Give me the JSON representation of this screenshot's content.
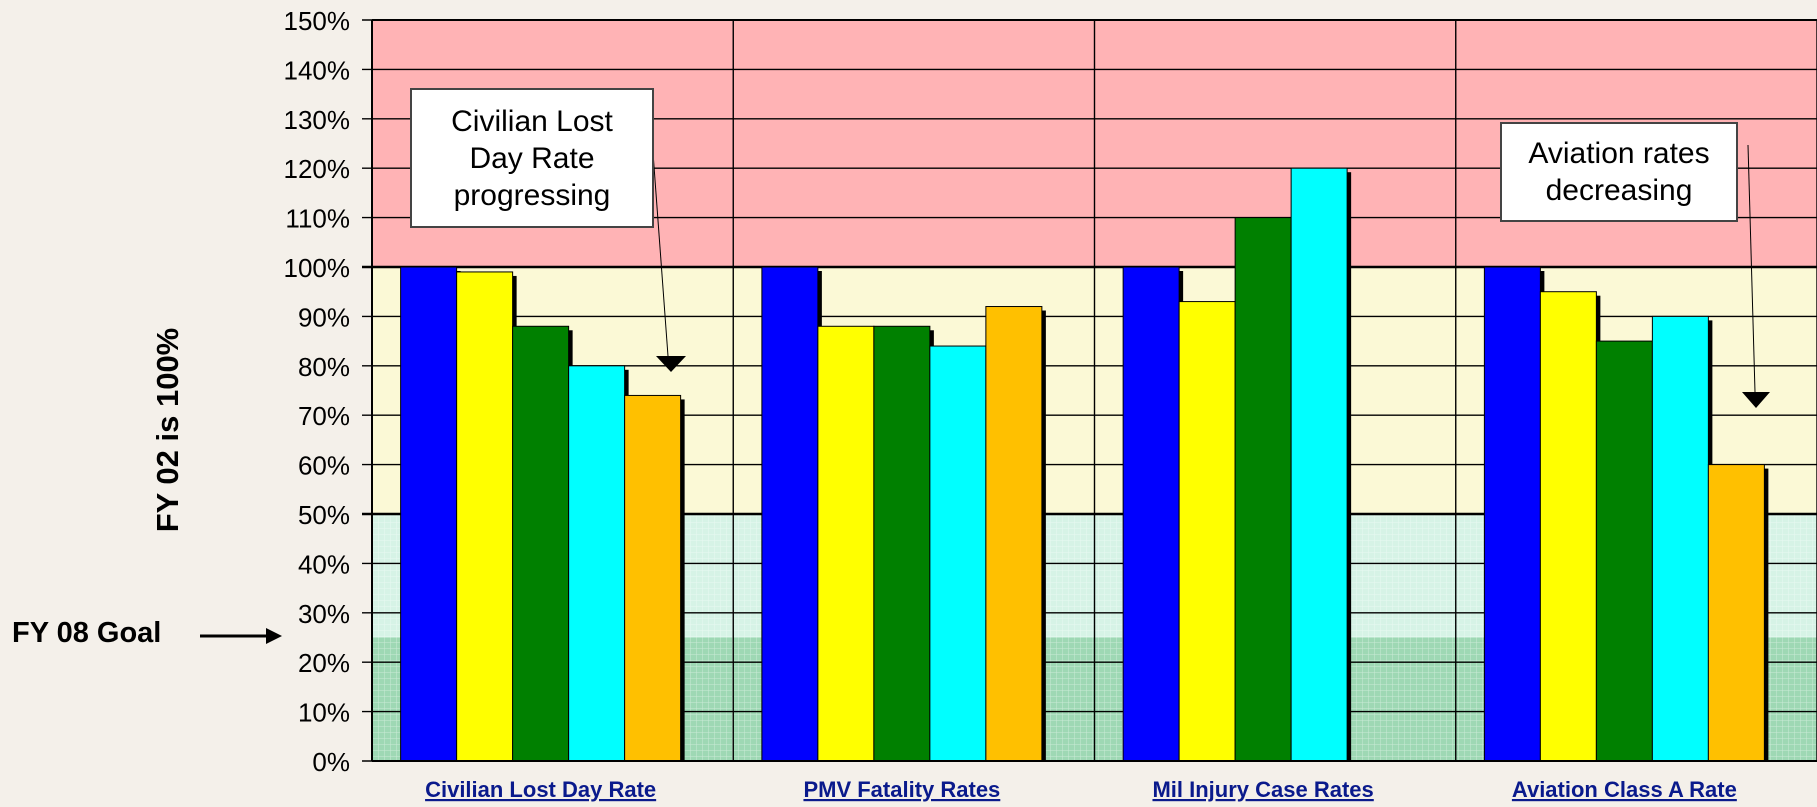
{
  "chart_data": {
    "type": "bar",
    "ylabel": "FY 02 is 100%",
    "ylim": [
      0,
      150
    ],
    "y_ticks": [
      "0%",
      "10%",
      "20%",
      "30%",
      "40%",
      "50%",
      "60%",
      "70%",
      "80%",
      "90%",
      "100%",
      "110%",
      "120%",
      "130%",
      "140%",
      "150%"
    ],
    "categories": [
      "Civilian Lost Day Rate",
      "PMV Fatality Rates",
      "Mil Injury Case Rates",
      "Aviation Class A Rate"
    ],
    "series": [
      {
        "color": "#0000ff",
        "values": [
          100,
          100,
          100,
          100
        ]
      },
      {
        "color": "#ffff00",
        "values": [
          99,
          88,
          93,
          95
        ]
      },
      {
        "color": "#008000",
        "values": [
          88,
          88,
          110,
          85
        ]
      },
      {
        "color": "#00ffff",
        "values": [
          80,
          84,
          120,
          90
        ]
      },
      {
        "color": "#ffc000",
        "values": [
          74,
          92,
          null,
          60
        ]
      }
    ],
    "bands": [
      {
        "from": 100,
        "to": 150,
        "color": "#ffb3b5"
      },
      {
        "from": 50,
        "to": 100,
        "color": "#fbf9d6"
      },
      {
        "from": 25,
        "to": 50,
        "color": "#d6f3e6"
      },
      {
        "from": 0,
        "to": 25,
        "color": "#9ed8b4"
      }
    ],
    "grid": true,
    "annotations": [
      {
        "text": "Civilian Lost\nDay Rate\nprogressing"
      },
      {
        "text": "Aviation rates\ndecreasing"
      }
    ],
    "goal_label": "FY 08 Goal"
  }
}
